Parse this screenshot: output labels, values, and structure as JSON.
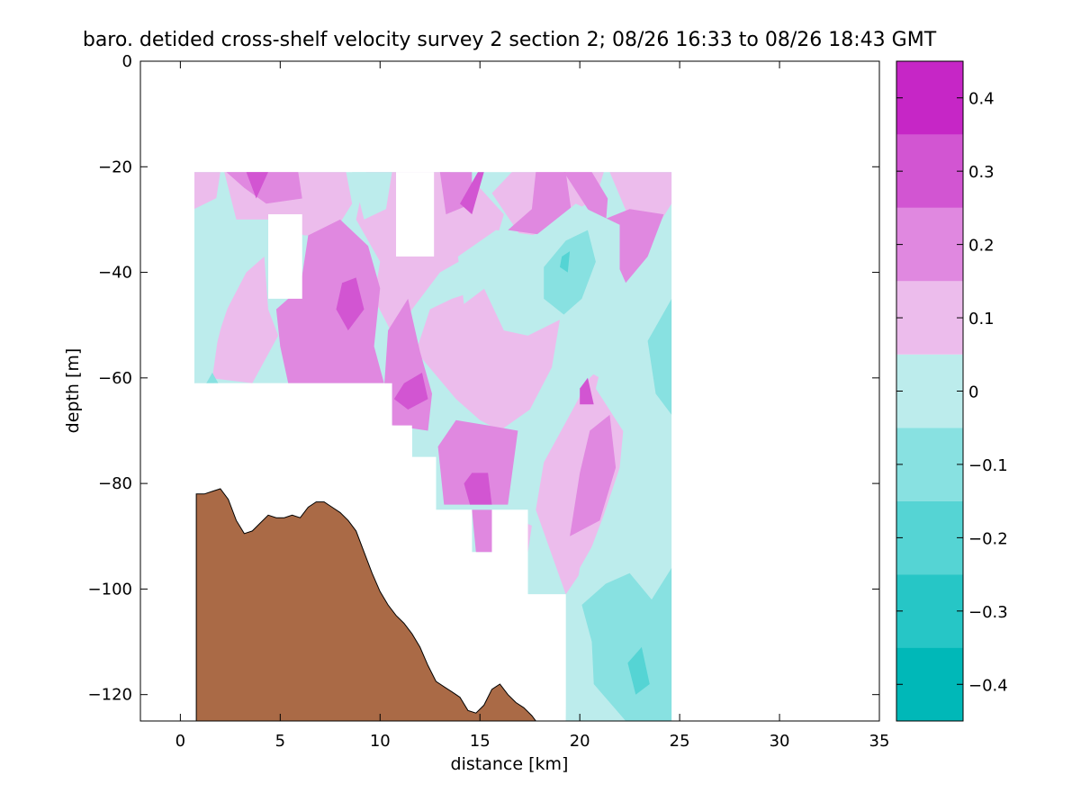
{
  "chart_data": {
    "type": "contourf",
    "title": "baro. detided cross-shelf velocity survey 2 section 2; 08/26 16:33 to 08/26 18:43 GMT",
    "xlabel": "distance [km]",
    "ylabel": "depth [m]",
    "xlim": [
      -2,
      35
    ],
    "ylim": [
      -125,
      0
    ],
    "xticks": [
      0,
      5,
      10,
      15,
      20,
      25,
      30,
      35
    ],
    "yticks": [
      0,
      -20,
      -40,
      -60,
      -80,
      -100,
      -120
    ],
    "colorbar": {
      "range": [
        -0.45,
        0.45
      ],
      "ticks": [
        0.4,
        0.3,
        0.2,
        0.1,
        0,
        -0.1,
        -0.2,
        -0.3,
        -0.4
      ],
      "levels": [
        -0.45,
        -0.35,
        -0.25,
        -0.15,
        -0.05,
        0.05,
        0.15,
        0.25,
        0.35,
        0.45
      ],
      "colors": [
        "#00b8b8",
        "#26c6c6",
        "#55d4d4",
        "#88e1e1",
        "#bcecec",
        "#ecbcec",
        "#e088e0",
        "#d255d2",
        "#c626c6",
        "#b800b8"
      ]
    },
    "data_region": {
      "x_start": 0.7,
      "x_end": 24.6,
      "top_depth": -21,
      "steps": [
        {
          "x0": 0.7,
          "x1": 9.7,
          "bottom": -61
        },
        {
          "x0": 9.7,
          "x1": 10.6,
          "bottom": -61
        },
        {
          "x0": 10.6,
          "x1": 11.6,
          "bottom": -69
        },
        {
          "x0": 11.6,
          "x1": 12.8,
          "bottom": -75
        },
        {
          "x0": 12.8,
          "x1": 14.6,
          "bottom": -85
        },
        {
          "x0": 14.6,
          "x1": 15.6,
          "bottom": -93
        },
        {
          "x0": 15.6,
          "x1": 17.4,
          "bottom": -85
        },
        {
          "x0": 17.4,
          "x1": 19.3,
          "bottom": -101
        },
        {
          "x0": 19.3,
          "x1": 24.6,
          "bottom": -125
        }
      ],
      "gaps": [
        {
          "x0": 4.4,
          "x1": 6.1,
          "top": -29,
          "bottom": -45
        },
        {
          "x0": 10.8,
          "x1": 12.7,
          "top": -21,
          "bottom": -37
        }
      ]
    },
    "bottom_profile": {
      "color": "#aa6a46",
      "x": [
        0.8,
        1.2,
        1.6,
        2.0,
        2.4,
        2.8,
        3.2,
        3.6,
        4.0,
        4.4,
        4.8,
        5.2,
        5.6,
        6.0,
        6.4,
        6.8,
        7.2,
        7.6,
        8.0,
        8.4,
        8.8,
        9.2,
        9.6,
        10.0,
        10.4,
        10.8,
        11.2,
        11.6,
        12.0,
        12.4,
        12.8,
        13.2,
        13.6,
        14.0,
        14.4,
        14.8,
        15.2,
        15.6,
        16.0,
        16.4,
        16.8,
        17.2,
        17.6,
        17.8
      ],
      "y": [
        -82,
        -82,
        -81.5,
        -81,
        -83,
        -87,
        -89.5,
        -89,
        -87.5,
        -86,
        -86.5,
        -86.5,
        -86,
        -86.5,
        -84.5,
        -83.5,
        -83.5,
        -84.5,
        -85.5,
        -87,
        -89,
        -93,
        -97,
        -100.5,
        -103,
        -105,
        -106.5,
        -108.5,
        -111,
        -114.5,
        -117.5,
        -118.5,
        -119.5,
        -120.5,
        -123,
        -123.5,
        -122,
        -119,
        -118,
        -120,
        -121.5,
        -122.5,
        -124,
        -125
      ]
    },
    "contour_fields": [
      {
        "level": 0.05,
        "color": "#ecbcec",
        "polygons": [
          [
            [
              0.7,
              -21
            ],
            [
              2.0,
              -21
            ],
            [
              1.8,
              -26
            ],
            [
              0.7,
              -28
            ]
          ],
          [
            [
              2.2,
              -21
            ],
            [
              8.3,
              -21
            ],
            [
              8.6,
              -27
            ],
            [
              7.6,
              -33
            ],
            [
              6.2,
              -33
            ],
            [
              4.4,
              -30
            ],
            [
              2.8,
              -30
            ]
          ],
          [
            [
              1.4,
              -60
            ],
            [
              2.2,
              -48
            ],
            [
              3.3,
              -40
            ],
            [
              4.2,
              -37
            ],
            [
              4.4,
              -47
            ],
            [
              4.9,
              -52
            ],
            [
              3.6,
              -61
            ]
          ],
          [
            [
              9.3,
              -21
            ],
            [
              13.5,
              -21
            ],
            [
              15.0,
              -24
            ],
            [
              16.2,
              -29
            ],
            [
              15.8,
              -34
            ],
            [
              13.0,
              -40
            ],
            [
              11.6,
              -47
            ],
            [
              10.8,
              -53
            ],
            [
              9.7,
              -45
            ],
            [
              10.0,
              -38
            ],
            [
              8.8,
              -30
            ]
          ],
          [
            [
              11.8,
              -55
            ],
            [
              12.5,
              -47
            ],
            [
              13.6,
              -45
            ],
            [
              15.2,
              -43
            ],
            [
              16.2,
              -51
            ],
            [
              17.4,
              -52
            ],
            [
              19.0,
              -49
            ],
            [
              18.6,
              -58
            ],
            [
              17.5,
              -66
            ],
            [
              16.0,
              -70
            ],
            [
              15.0,
              -68
            ],
            [
              13.8,
              -64
            ]
          ],
          [
            [
              15.6,
              -25
            ],
            [
              16.6,
              -21
            ],
            [
              21.2,
              -21
            ],
            [
              20.8,
              -26
            ],
            [
              19.0,
              -30
            ],
            [
              17.2,
              -34
            ]
          ],
          [
            [
              17.8,
              -85
            ],
            [
              18.2,
              -76
            ],
            [
              19.5,
              -67
            ],
            [
              20.5,
              -60
            ],
            [
              21.6,
              -56
            ],
            [
              22.3,
              -65
            ],
            [
              22.0,
              -77
            ],
            [
              21.2,
              -86
            ],
            [
              20.2,
              -96
            ],
            [
              19.3,
              -101
            ]
          ],
          [
            [
              21.5,
              -21
            ],
            [
              24.6,
              -21
            ],
            [
              24.6,
              -27
            ],
            [
              23.6,
              -33
            ],
            [
              22.5,
              -30
            ]
          ],
          [
            [
              16.0,
              -93
            ],
            [
              17.0,
              -87
            ],
            [
              17.6,
              -88
            ],
            [
              17.4,
              -93
            ]
          ]
        ]
      },
      {
        "level": 0.15,
        "color": "#e088e0",
        "polygons": [
          [
            [
              2.3,
              -21
            ],
            [
              5.9,
              -21
            ],
            [
              6.1,
              -26
            ],
            [
              4.3,
              -27
            ],
            [
              3.2,
              -24
            ]
          ],
          [
            [
              6.4,
              -33
            ],
            [
              8.0,
              -30
            ],
            [
              9.4,
              -35
            ],
            [
              10.0,
              -43
            ],
            [
              9.7,
              -54
            ],
            [
              10.2,
              -61
            ],
            [
              5.4,
              -61
            ],
            [
              5.0,
              -54
            ],
            [
              4.8,
              -47
            ],
            [
              6.0,
              -43
            ]
          ],
          [
            [
              10.4,
              -51
            ],
            [
              11.4,
              -45
            ],
            [
              12.0,
              -55
            ],
            [
              12.6,
              -63
            ],
            [
              12.4,
              -70
            ],
            [
              10.6,
              -69
            ],
            [
              10.2,
              -62
            ]
          ],
          [
            [
              13.0,
              -21
            ],
            [
              14.6,
              -21
            ],
            [
              14.6,
              -27
            ],
            [
              13.3,
              -29
            ]
          ],
          [
            [
              12.9,
              -73
            ],
            [
              13.8,
              -68
            ],
            [
              15.4,
              -69
            ],
            [
              16.9,
              -70
            ],
            [
              16.4,
              -84
            ],
            [
              13.2,
              -84
            ]
          ],
          [
            [
              16.4,
              -32
            ],
            [
              17.6,
              -28
            ],
            [
              17.8,
              -21
            ],
            [
              19.3,
              -21
            ],
            [
              19.6,
              -29
            ],
            [
              18.3,
              -33
            ]
          ],
          [
            [
              19.2,
              -21
            ],
            [
              20.6,
              -21
            ],
            [
              21.4,
              -26
            ],
            [
              21.3,
              -31
            ],
            [
              20.4,
              -28
            ]
          ],
          [
            [
              21.2,
              -30
            ],
            [
              22.5,
              -28
            ],
            [
              24.2,
              -29
            ],
            [
              23.4,
              -37
            ],
            [
              22.3,
              -42
            ],
            [
              21.6,
              -36
            ]
          ],
          [
            [
              19.5,
              -90
            ],
            [
              20.0,
              -78
            ],
            [
              20.5,
              -70
            ],
            [
              21.5,
              -67
            ],
            [
              21.8,
              -77
            ],
            [
              21.0,
              -87
            ]
          ],
          [
            [
              14.6,
              -85
            ],
            [
              15.6,
              -85
            ],
            [
              15.6,
              -93
            ],
            [
              14.8,
              -93
            ]
          ]
        ]
      },
      {
        "level": 0.25,
        "color": "#d255d2",
        "polygons": [
          [
            [
              3.3,
              -21
            ],
            [
              4.4,
              -21
            ],
            [
              3.8,
              -26
            ]
          ],
          [
            [
              8.1,
              -42
            ],
            [
              8.8,
              -41
            ],
            [
              9.2,
              -47
            ],
            [
              8.4,
              -51
            ],
            [
              7.8,
              -47
            ]
          ],
          [
            [
              10.7,
              -64
            ],
            [
              11.2,
              -61
            ],
            [
              12.1,
              -59
            ],
            [
              12.4,
              -64
            ],
            [
              11.4,
              -66
            ]
          ],
          [
            [
              14.2,
              -80
            ],
            [
              14.6,
              -78
            ],
            [
              15.4,
              -78
            ],
            [
              15.6,
              -84
            ],
            [
              14.5,
              -84
            ]
          ],
          [
            [
              14.0,
              -27
            ],
            [
              14.9,
              -21
            ],
            [
              15.2,
              -21
            ],
            [
              14.6,
              -29
            ]
          ],
          [
            [
              20.0,
              -62
            ],
            [
              20.4,
              -60
            ],
            [
              20.7,
              -65
            ],
            [
              20.0,
              -65
            ]
          ]
        ]
      },
      {
        "level": -0.05,
        "color": "#bcecec",
        "polygons": [
          [
            [
              0.7,
              -28
            ],
            [
              2.3,
              -25
            ],
            [
              3.2,
              -34
            ],
            [
              2.7,
              -43
            ],
            [
              1.9,
              -52
            ],
            [
              1.6,
              -60
            ],
            [
              0.7,
              -61
            ]
          ],
          [
            [
              8.6,
              -21
            ],
            [
              10.6,
              -21
            ],
            [
              10.3,
              -28
            ],
            [
              9.2,
              -30
            ]
          ],
          [
            [
              13.9,
              -37
            ],
            [
              15.8,
              -32
            ],
            [
              17.8,
              -33
            ],
            [
              19.8,
              -27
            ],
            [
              22.0,
              -31
            ],
            [
              22.0,
              -44
            ],
            [
              22.5,
              -54
            ],
            [
              21.0,
              -60
            ],
            [
              19.6,
              -57
            ],
            [
              19.4,
              -45
            ],
            [
              17.4,
              -47
            ],
            [
              16.2,
              -44
            ],
            [
              15.6,
              -42
            ],
            [
              14.2,
              -46
            ]
          ],
          [
            [
              20.8,
              -62
            ],
            [
              21.4,
              -53
            ],
            [
              22.8,
              -44
            ],
            [
              24.6,
              -36
            ],
            [
              24.6,
              -125
            ],
            [
              19.3,
              -125
            ],
            [
              19.4,
              -110
            ],
            [
              20.0,
              -96
            ],
            [
              21.8,
              -84
            ],
            [
              22.5,
              -72
            ]
          ],
          [
            [
              0.7,
              -61
            ],
            [
              1.4,
              -58
            ],
            [
              1.7,
              -61
            ]
          ]
        ]
      },
      {
        "level": -0.15,
        "color": "#88e1e1",
        "polygons": [
          [
            [
              18.2,
              -39
            ],
            [
              19.3,
              -34
            ],
            [
              20.4,
              -32
            ],
            [
              20.8,
              -38
            ],
            [
              20.1,
              -45
            ],
            [
              19.2,
              -48
            ],
            [
              18.2,
              -45
            ]
          ],
          [
            [
              23.4,
              -53
            ],
            [
              24.6,
              -45
            ],
            [
              24.6,
              -67
            ],
            [
              23.8,
              -63
            ]
          ],
          [
            [
              20.1,
              -103
            ],
            [
              21.3,
              -99
            ],
            [
              22.5,
              -97
            ],
            [
              23.6,
              -102
            ],
            [
              24.6,
              -96
            ],
            [
              24.6,
              -125
            ],
            [
              22.3,
              -125
            ],
            [
              20.7,
              -118
            ],
            [
              20.6,
              -110
            ]
          ],
          [
            [
              1.3,
              -61
            ],
            [
              1.6,
              -59
            ],
            [
              1.9,
              -61
            ]
          ]
        ]
      },
      {
        "level": -0.25,
        "color": "#55d4d4",
        "polygons": [
          [
            [
              19.1,
              -37
            ],
            [
              19.5,
              -36
            ],
            [
              19.4,
              -40
            ],
            [
              19.0,
              -39
            ]
          ],
          [
            [
              22.4,
              -114
            ],
            [
              23.1,
              -111
            ],
            [
              23.5,
              -118
            ],
            [
              22.8,
              -120
            ]
          ]
        ]
      }
    ]
  }
}
